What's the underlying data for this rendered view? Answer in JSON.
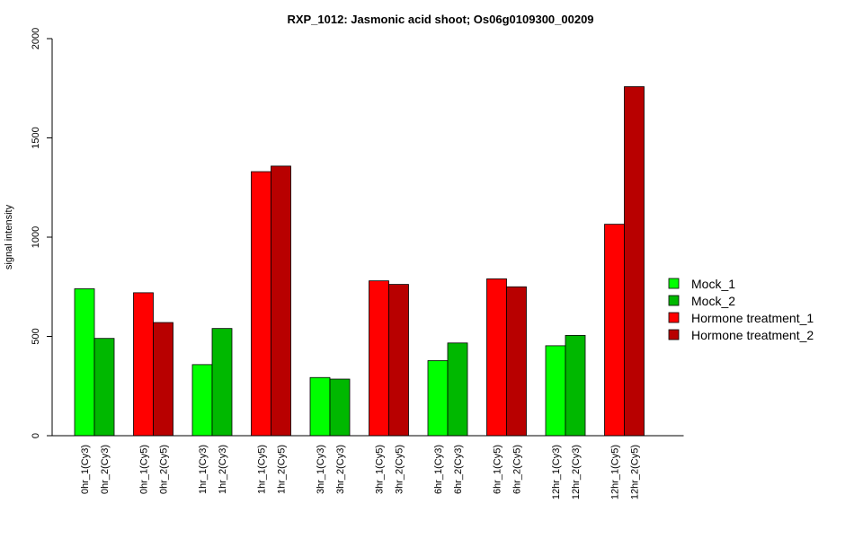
{
  "chart_data": {
    "type": "bar",
    "title": "RXP_1012: Jasmonic acid shoot; Os06g0109300_00209",
    "ylabel": "signal intensity",
    "xlabel": "",
    "ylim": [
      0,
      2000
    ],
    "yticks": [
      0,
      500,
      1000,
      1500,
      2000
    ],
    "grid": false,
    "legend_position": "right",
    "legend": [
      {
        "name": "Mock_1",
        "color": "#00ff00"
      },
      {
        "name": "Mock_2",
        "color": "#00b800"
      },
      {
        "name": "Hormone treatment_1",
        "color": "#ff0000"
      },
      {
        "name": "Hormone treatment_2",
        "color": "#b80000"
      }
    ],
    "bars": [
      {
        "label": "0hr_1(Cy3)",
        "value": 740,
        "color": "#00ff00"
      },
      {
        "label": "0hr_2(Cy3)",
        "value": 490,
        "color": "#00b800"
      },
      {
        "label": "0hr_1(Cy5)",
        "value": 720,
        "color": "#ff0000"
      },
      {
        "label": "0hr_2(Cy5)",
        "value": 570,
        "color": "#b80000"
      },
      {
        "label": "1hr_1(Cy3)",
        "value": 358,
        "color": "#00ff00"
      },
      {
        "label": "1hr_2(Cy3)",
        "value": 540,
        "color": "#00b800"
      },
      {
        "label": "1hr_1(Cy5)",
        "value": 1330,
        "color": "#ff0000"
      },
      {
        "label": "1hr_2(Cy5)",
        "value": 1358,
        "color": "#b80000"
      },
      {
        "label": "3hr_1(Cy3)",
        "value": 293,
        "color": "#00ff00"
      },
      {
        "label": "3hr_2(Cy3)",
        "value": 285,
        "color": "#00b800"
      },
      {
        "label": "3hr_1(Cy5)",
        "value": 780,
        "color": "#ff0000"
      },
      {
        "label": "3hr_2(Cy5)",
        "value": 762,
        "color": "#b80000"
      },
      {
        "label": "6hr_1(Cy3)",
        "value": 378,
        "color": "#00ff00"
      },
      {
        "label": "6hr_2(Cy3)",
        "value": 467,
        "color": "#00b800"
      },
      {
        "label": "6hr_1(Cy5)",
        "value": 790,
        "color": "#ff0000"
      },
      {
        "label": "6hr_2(Cy5)",
        "value": 750,
        "color": "#b80000"
      },
      {
        "label": "12hr_1(Cy3)",
        "value": 453,
        "color": "#00ff00"
      },
      {
        "label": "12hr_2(Cy3)",
        "value": 505,
        "color": "#00b800"
      },
      {
        "label": "12hr_1(Cy5)",
        "value": 1065,
        "color": "#ff0000"
      },
      {
        "label": "12hr_2(Cy5)",
        "value": 1758,
        "color": "#b80000"
      }
    ]
  }
}
